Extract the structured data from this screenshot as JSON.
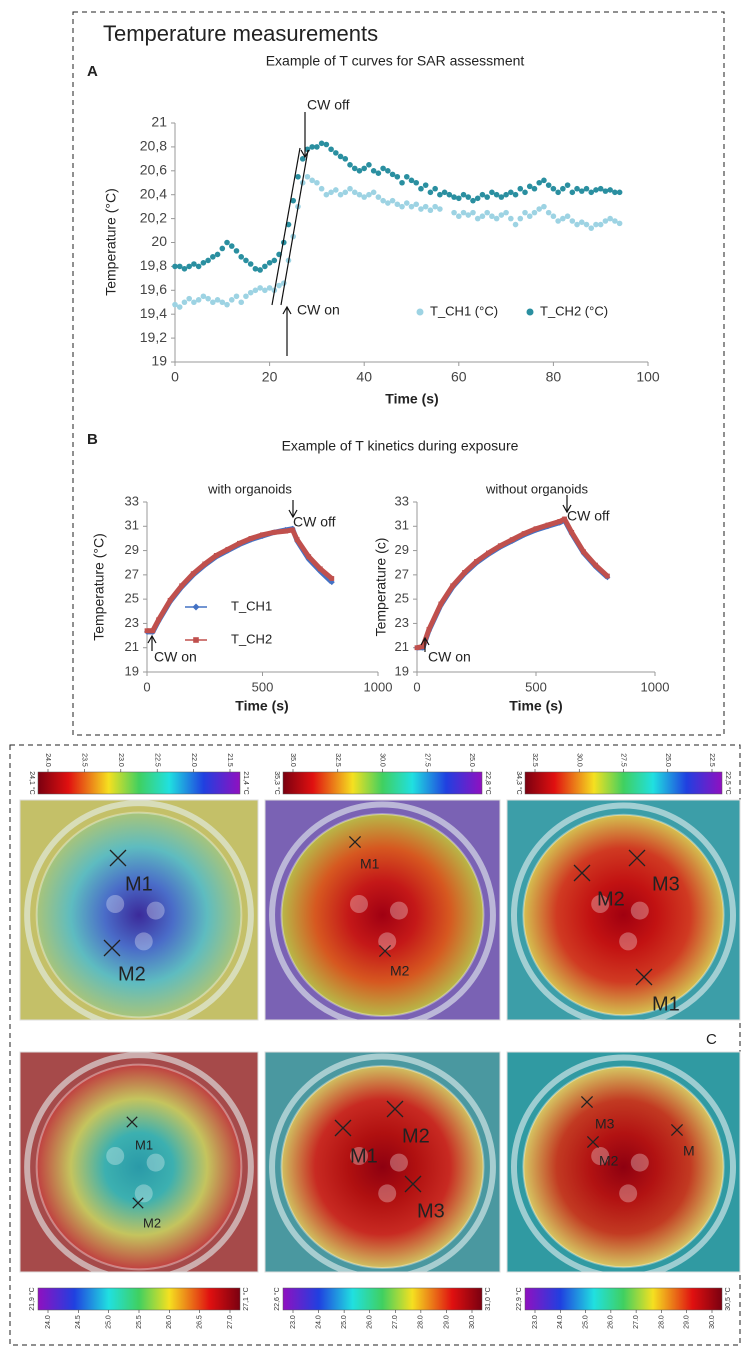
{
  "figure_title": "Temperature measurements",
  "panel_b": {
    "label": "B",
    "title": "Example of T kinetics during exposure"
  },
  "chart_data": [
    {
      "type": "scatter",
      "panel_label": "A",
      "title": "Example of T curves for SAR assessment",
      "x_label": "Time (s)",
      "y_label": "Temperature (°C)",
      "x": [
        0,
        1,
        2,
        3,
        4,
        5,
        6,
        7,
        8,
        9,
        10,
        11,
        12,
        13,
        14,
        15,
        16,
        17,
        18,
        19,
        20,
        21,
        22,
        23,
        24,
        25,
        26,
        27,
        28,
        29,
        30,
        31,
        32,
        33,
        34,
        35,
        36,
        37,
        38,
        39,
        40,
        41,
        42,
        43,
        44,
        45,
        46,
        47,
        48,
        49,
        50,
        51,
        52,
        53,
        54,
        55,
        56,
        57,
        58,
        59,
        60,
        61,
        62,
        63,
        64,
        65,
        66,
        67,
        68,
        69,
        70,
        71,
        72,
        73,
        74,
        75,
        76,
        77,
        78,
        79,
        80,
        81,
        82,
        83,
        84,
        85,
        86,
        87,
        88,
        89,
        90,
        91,
        92,
        93,
        94
      ],
      "series": [
        {
          "name": "T_CH1 (°C)",
          "color": "#9dd3e3",
          "marker": "circle",
          "values": [
            19.48,
            19.46,
            19.5,
            19.53,
            19.5,
            19.52,
            19.55,
            19.53,
            19.5,
            19.52,
            19.5,
            19.48,
            19.52,
            19.55,
            19.5,
            19.55,
            19.58,
            19.6,
            19.62,
            19.6,
            19.62,
            19.6,
            19.64,
            19.66,
            19.85,
            20.05,
            20.3,
            20.5,
            20.55,
            20.52,
            20.5,
            20.45,
            20.4,
            20.42,
            20.44,
            20.4,
            20.42,
            20.45,
            20.42,
            20.4,
            20.38,
            20.4,
            20.42,
            20.38,
            20.35,
            20.33,
            20.35,
            20.32,
            20.3,
            20.33,
            20.3,
            20.32,
            20.28,
            20.3,
            20.27,
            20.3,
            20.28,
            null,
            null,
            20.25,
            20.22,
            20.25,
            20.23,
            20.25,
            20.2,
            20.22,
            20.25,
            20.22,
            20.2,
            20.23,
            20.25,
            20.2,
            20.15,
            20.2,
            20.25,
            20.22,
            20.25,
            20.28,
            20.3,
            20.25,
            20.22,
            20.18,
            20.2,
            20.22,
            20.18,
            20.15,
            20.17,
            20.15,
            20.12,
            20.15,
            20.15,
            20.18,
            20.2,
            20.18,
            20.16
          ]
        },
        {
          "name": "T_CH2 (°C)",
          "color": "#2a8fa0",
          "marker": "circle",
          "values": [
            19.8,
            19.8,
            19.78,
            19.8,
            19.82,
            19.8,
            19.83,
            19.85,
            19.88,
            19.9,
            19.95,
            20.0,
            19.97,
            19.93,
            19.88,
            19.85,
            19.82,
            19.78,
            19.77,
            19.8,
            19.83,
            19.85,
            19.9,
            20.0,
            20.15,
            20.35,
            20.55,
            20.7,
            20.78,
            20.8,
            20.8,
            20.83,
            20.82,
            20.78,
            20.75,
            20.72,
            20.7,
            20.65,
            20.62,
            20.6,
            20.62,
            20.65,
            20.6,
            20.58,
            20.62,
            20.6,
            20.57,
            20.55,
            20.5,
            20.55,
            20.52,
            20.5,
            20.45,
            20.48,
            20.42,
            20.45,
            20.4,
            20.42,
            20.4,
            20.38,
            20.37,
            20.4,
            20.38,
            20.35,
            20.37,
            20.4,
            20.38,
            20.42,
            20.4,
            20.38,
            20.4,
            20.42,
            20.4,
            20.45,
            20.42,
            20.47,
            20.45,
            20.5,
            20.52,
            20.48,
            20.45,
            20.42,
            20.45,
            20.48,
            20.42,
            20.45,
            20.43,
            20.45,
            20.42,
            20.44,
            20.45,
            20.43,
            20.44,
            20.42,
            20.42
          ]
        }
      ],
      "xlim": [
        0,
        100
      ],
      "xticks": [
        0,
        20,
        40,
        60,
        80,
        100
      ],
      "ylim": [
        19,
        21
      ],
      "yticks": [
        19,
        {
          "value": 19.2,
          "label": "19,2"
        },
        {
          "value": 19.4,
          "label": "19,4"
        },
        {
          "value": 19.6,
          "label": "19,6"
        },
        {
          "value": 19.8,
          "label": "19,8"
        },
        20,
        {
          "value": 20.2,
          "label": "20,2"
        },
        {
          "value": 20.4,
          "label": "20,4"
        },
        {
          "value": 20.6,
          "label": "20,6"
        },
        {
          "value": 20.8,
          "label": "20,8"
        },
        21
      ],
      "annotations": [
        "CW off",
        "CW on"
      ],
      "legend": "lower right"
    },
    {
      "type": "line",
      "title": "with organoids",
      "x_label": "Time (s)",
      "y_label": "Temperature (°C)",
      "x": [
        0,
        25,
        50,
        100,
        150,
        200,
        250,
        300,
        350,
        400,
        450,
        500,
        550,
        600,
        630,
        650,
        700,
        750,
        800
      ],
      "series": [
        {
          "name": "T_CH1",
          "color": "#4472c4",
          "marker": "diamond",
          "values": [
            22.3,
            22.3,
            23.2,
            24.8,
            26.0,
            27.0,
            27.8,
            28.5,
            29.0,
            29.5,
            29.9,
            30.2,
            30.5,
            30.7,
            30.8,
            29.8,
            28.3,
            27.3,
            26.4
          ]
        },
        {
          "name": "T_CH2",
          "color": "#c0504d",
          "marker": "square",
          "values": [
            22.4,
            22.4,
            23.3,
            24.9,
            26.1,
            27.1,
            27.9,
            28.6,
            29.1,
            29.6,
            30.0,
            30.3,
            30.5,
            30.6,
            30.7,
            29.9,
            28.5,
            27.5,
            26.7
          ]
        }
      ],
      "xlim": [
        0,
        1000
      ],
      "xticks": [
        0,
        500,
        1000
      ],
      "ylim": [
        19,
        33
      ],
      "yticks": [
        19,
        21,
        23,
        25,
        27,
        29,
        31,
        33
      ],
      "annotations": [
        "CW off",
        "CW on"
      ],
      "legend": "center"
    },
    {
      "type": "line",
      "title": "without organoids",
      "x_label": "Time (s)",
      "y_label": "Temperature (c)",
      "x": [
        0,
        25,
        50,
        100,
        150,
        200,
        250,
        300,
        350,
        400,
        450,
        500,
        550,
        600,
        620,
        650,
        700,
        750,
        800
      ],
      "series": [
        {
          "color": "#4472c4",
          "marker": "diamond",
          "values": [
            21.0,
            21.0,
            22.4,
            24.5,
            26.0,
            27.1,
            28.0,
            28.7,
            29.3,
            29.8,
            30.3,
            30.7,
            31.0,
            31.3,
            31.5,
            30.4,
            28.8,
            27.7,
            26.8
          ]
        },
        {
          "color": "#c0504d",
          "marker": "square",
          "values": [
            21.0,
            21.1,
            22.5,
            24.6,
            26.1,
            27.2,
            28.1,
            28.8,
            29.4,
            29.9,
            30.4,
            30.8,
            31.1,
            31.4,
            31.6,
            30.5,
            28.9,
            27.8,
            26.9
          ]
        }
      ],
      "xlim": [
        0,
        1000
      ],
      "xticks": [
        0,
        500,
        1000
      ],
      "ylim": [
        19,
        33
      ],
      "yticks": [
        19,
        21,
        23,
        25,
        27,
        29,
        31,
        33
      ],
      "annotations": [
        "CW off",
        "CW on"
      ]
    }
  ],
  "panel_c": {
    "label": "C",
    "images": [
      {
        "colorbar": {
          "start": "24,1 °C",
          "end": "21,4 °C",
          "ticks": [
            "24.0",
            "23.5",
            "23.0",
            "22.5",
            "22.0",
            "21.5"
          ]
        },
        "markers": [
          "M1",
          "M2"
        ]
      },
      {
        "colorbar": {
          "start": "35,3 °C",
          "end": "22,8 °C",
          "ticks": [
            "35.0",
            "32.5",
            "30.0",
            "27.5",
            "25.0"
          ]
        },
        "markers": [
          "M1",
          "M2"
        ]
      },
      {
        "colorbar": {
          "start": "34,3 °C",
          "end": "22,5 °C",
          "ticks": [
            "32.5",
            "30.0",
            "27.5",
            "25.0",
            "22.5"
          ]
        },
        "markers": [
          "M3",
          "M2",
          "M1"
        ]
      },
      {
        "colorbar": {
          "start": "21,9 °C",
          "end": "27,1 °C",
          "ticks": [
            "24.0",
            "24.5",
            "25.0",
            "25.5",
            "26.0",
            "26.5",
            "27.0"
          ]
        },
        "markers": [
          "M1",
          "M2"
        ]
      },
      {
        "colorbar": {
          "start": "22,6 °C",
          "end": "31,0 °C",
          "ticks": [
            "23.0",
            "24.0",
            "25.0",
            "26.0",
            "27.0",
            "28.0",
            "29.0",
            "30.0"
          ]
        },
        "markers": [
          "M1",
          "M2",
          "M3"
        ]
      },
      {
        "colorbar": {
          "start": "22,9 °C",
          "end": "30,5 °C",
          "ticks": [
            "23.0",
            "24.0",
            "25.0",
            "26.0",
            "27.0",
            "28.0",
            "29.0",
            "30.0"
          ]
        },
        "markers": [
          "M3",
          "M2",
          "M"
        ]
      }
    ]
  }
}
